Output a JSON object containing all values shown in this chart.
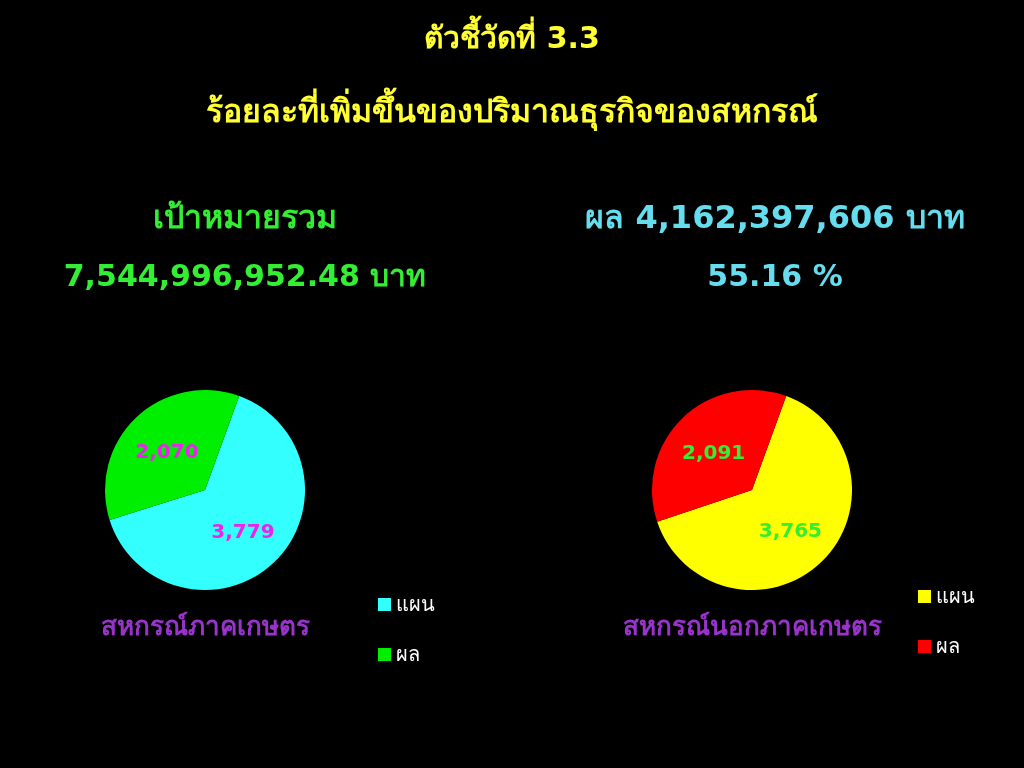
{
  "chart_data": [
    {
      "type": "other",
      "title": "ตัวชี้วัดที่ 3.3",
      "subtitle": "ร้อยละที่เพิ่มขึ้นของปริมาณธุรกิจของสหกรณ์"
    },
    {
      "type": "pie",
      "title": "สหกรณ์ภาคเกษตร",
      "annotations": [
        "เป้าหมายรวม",
        "7,544,996,952.48 บาท"
      ],
      "categories": [
        "แผน",
        "ผล"
      ],
      "values": [
        3779,
        2070
      ],
      "value_labels": [
        "3,779",
        "2,070"
      ],
      "colors": [
        "#33ffff",
        "#00ee00"
      ],
      "legend": "bottom right"
    },
    {
      "type": "pie",
      "title": "สหกรณ์นอกภาคเกษตร",
      "annotations": [
        "ผล  4,162,397,606 บาท",
        "55.16 %"
      ],
      "categories": [
        "แผน",
        "ผล"
      ],
      "values": [
        3765,
        2091
      ],
      "value_labels": [
        "3,765",
        "2,091"
      ],
      "colors": [
        "#ffff00",
        "#ff0000"
      ],
      "legend": "bottom right"
    }
  ]
}
